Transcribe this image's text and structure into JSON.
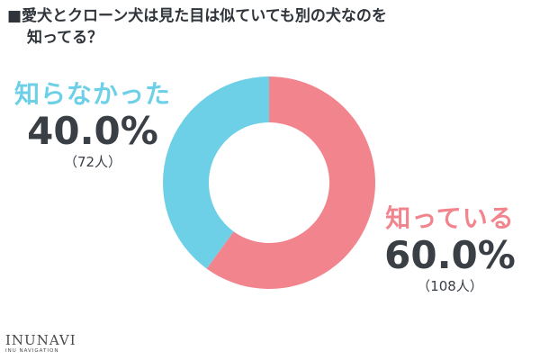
{
  "title": {
    "line1": "■愛犬とクローン犬は見た目は似ていても別の犬なのを",
    "line2": "知ってる？"
  },
  "chart_data": {
    "type": "pie",
    "donut": true,
    "slices": [
      {
        "label": "知っている",
        "percent_text": "60.0%",
        "count_text": "（108人）",
        "value": 60.0,
        "count": 108,
        "color": "#f2848e"
      },
      {
        "label": "知らなかった",
        "percent_text": "40.0%",
        "count_text": "（72人）",
        "value": 40.0,
        "count": 72,
        "color": "#6dd0e6"
      }
    ]
  },
  "brand": {
    "name": "INUNAVI",
    "sub": "INU NAVIGATION"
  }
}
